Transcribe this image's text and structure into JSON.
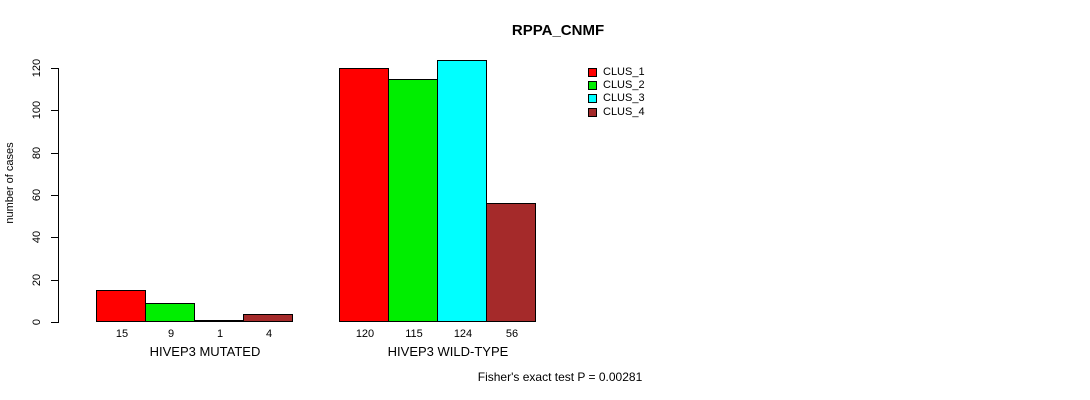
{
  "chart_data": {
    "type": "bar",
    "title": "RPPA_CNMF",
    "ylabel": "number of cases",
    "ylim": [
      0,
      120
    ],
    "yticks": [
      0,
      20,
      40,
      60,
      80,
      100,
      120
    ],
    "grid": false,
    "legend_position": "right",
    "bar_value_labels_shown": true,
    "groups": [
      {
        "label": "HIVEP3 MUTATED",
        "values": [
          15,
          9,
          1,
          4
        ]
      },
      {
        "label": "HIVEP3 WILD-TYPE",
        "values": [
          120,
          115,
          124,
          56
        ]
      }
    ],
    "series": [
      {
        "name": "CLUS_1",
        "color": "#FF0000"
      },
      {
        "name": "CLUS_2",
        "color": "#00EE00"
      },
      {
        "name": "CLUS_3",
        "color": "#00FFFF"
      },
      {
        "name": "CLUS_4",
        "color": "#A52A2A"
      }
    ],
    "annotation": "Fisher's exact test P = 0.00281"
  }
}
